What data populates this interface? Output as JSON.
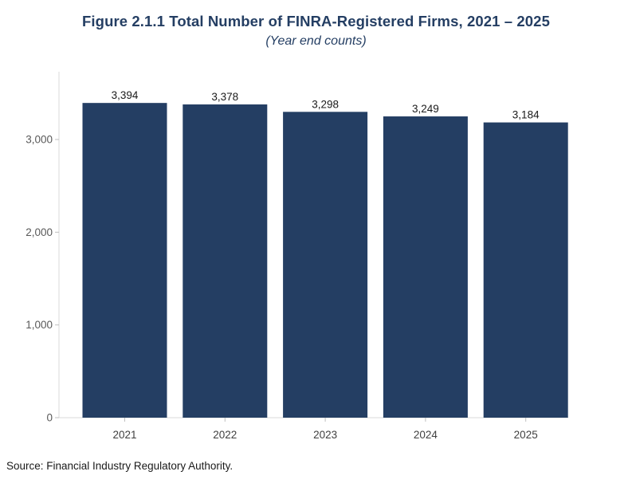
{
  "title": "Figure 2.1.1 Total Number of FINRA-Registered Firms, 2021 – 2025",
  "subtitle": "(Year end counts)",
  "source": "Source: Financial Industry Regulatory Authority.",
  "bar_color": "#243e63",
  "chart_data": {
    "type": "bar",
    "title": "Figure 2.1.1 Total Number of FINRA-Registered Firms, 2021 – 2025",
    "subtitle": "(Year end counts)",
    "categories": [
      "2021",
      "2022",
      "2023",
      "2024",
      "2025"
    ],
    "values": [
      3394,
      3378,
      3298,
      3249,
      3184
    ],
    "value_labels": [
      "3,394",
      "3,378",
      "3,298",
      "3,249",
      "3,184"
    ],
    "yticks": [
      0,
      1000,
      2000,
      3000
    ],
    "ytick_labels": [
      "0",
      "1,000",
      "2,000",
      "3,000"
    ],
    "ylim": [
      0,
      3750
    ],
    "xlabel": "",
    "ylabel": "",
    "grid": false,
    "legend": "none"
  }
}
